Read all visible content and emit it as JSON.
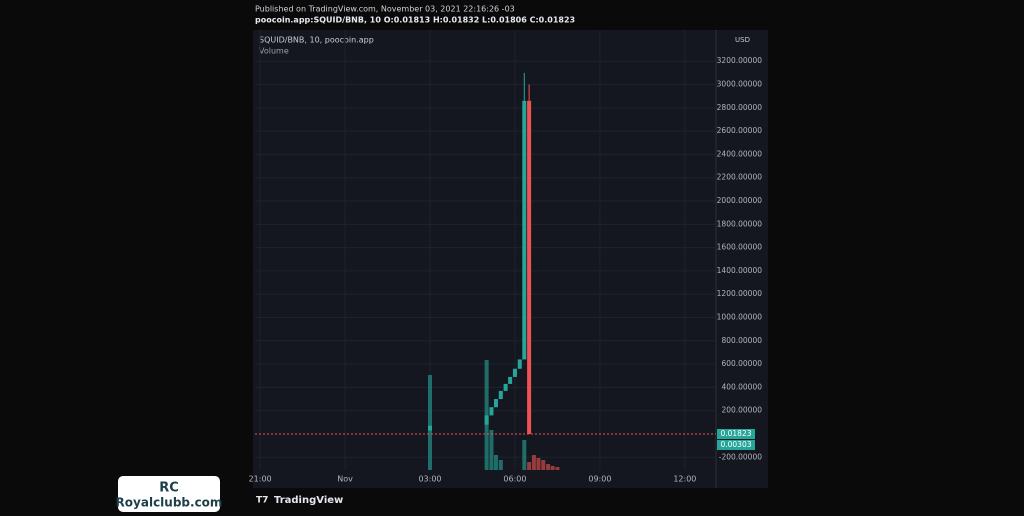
{
  "chart_data": {
    "type": "candlestick",
    "published": "Published on TradingView.com, November 03, 2021 22:16:26 -03",
    "symbol_line": "poocoin.app:SQUID/BNB, 10 O:0.01813 H:0.01832 L:0.01806 C:0.01823",
    "legend": "SQUID/BNB, 10, poocoin.app",
    "volume_label": "Volume",
    "currency": "USD",
    "brand": "TradingView",
    "watermark": {
      "logo": "RC",
      "site": "Royalclubb.com"
    },
    "up_color": "#26a69a",
    "down_color": "#ef5350",
    "xlim": [
      20.82,
      37.1
    ],
    "ylim": [
      -309,
      3468
    ],
    "xticks": [
      {
        "value": 21,
        "label": "21:00"
      },
      {
        "value": 24,
        "label": "Nov"
      },
      {
        "value": 27,
        "label": "03:00"
      },
      {
        "value": 30,
        "label": "06:00"
      },
      {
        "value": 33,
        "label": "09:00"
      },
      {
        "value": 36,
        "label": "12:00"
      }
    ],
    "yticks": [
      {
        "value": 3200,
        "label": "3200.00000"
      },
      {
        "value": 3000,
        "label": "3000.00000"
      },
      {
        "value": 2800,
        "label": "2800.00000"
      },
      {
        "value": 2600,
        "label": "2600.00000"
      },
      {
        "value": 2400,
        "label": "2400.00000"
      },
      {
        "value": 2200,
        "label": "2200.00000"
      },
      {
        "value": 2000,
        "label": "2000.00000"
      },
      {
        "value": 1800,
        "label": "1800.00000"
      },
      {
        "value": 1600,
        "label": "1600.00000"
      },
      {
        "value": 1400,
        "label": "1400.00000"
      },
      {
        "value": 1200,
        "label": "1200.00000"
      },
      {
        "value": 1000,
        "label": "1000.00000"
      },
      {
        "value": 800,
        "label": "800.00000"
      },
      {
        "value": 600,
        "label": "600.00000"
      },
      {
        "value": 400,
        "label": "400.00000"
      },
      {
        "value": 200,
        "label": "200.00000"
      },
      {
        "value": -200,
        "label": "-200.00000"
      }
    ],
    "grid": true,
    "candles": {
      "x": [
        27.0,
        29.0,
        29.17,
        29.33,
        29.5,
        29.67,
        29.83,
        30.0,
        30.17,
        30.33,
        30.5
      ],
      "open": [
        30,
        80,
        160,
        230,
        300,
        370,
        430,
        490,
        560,
        640,
        2860
      ],
      "high": [
        70,
        160,
        230,
        300,
        370,
        430,
        490,
        560,
        640,
        3100,
        3000
      ],
      "low": [
        30,
        80,
        160,
        230,
        300,
        370,
        430,
        490,
        560,
        640,
        0
      ],
      "close": [
        70,
        160,
        230,
        300,
        370,
        430,
        490,
        560,
        640,
        2860,
        0.02
      ]
    },
    "last_price": 0.01823,
    "price_labels": [
      0.01823,
      0.00303
    ],
    "volume": {
      "ylim": [
        0,
        130
      ],
      "x": [
        27.0,
        29.0,
        29.17,
        29.33,
        29.5,
        30.33,
        30.5,
        30.67,
        30.83,
        31.0,
        31.17,
        31.33,
        31.5
      ],
      "values": [
        95,
        110,
        40,
        15,
        10,
        30,
        8,
        15,
        12,
        10,
        6,
        4,
        3
      ],
      "colors": [
        "#26a69a",
        "#26a69a",
        "#26a69a",
        "#26a69a",
        "#26a69a",
        "#26a69a",
        "#ef5350",
        "#ef5350",
        "#ef5350",
        "#ef5350",
        "#ef5350",
        "#ef5350",
        "#ef5350"
      ]
    }
  }
}
